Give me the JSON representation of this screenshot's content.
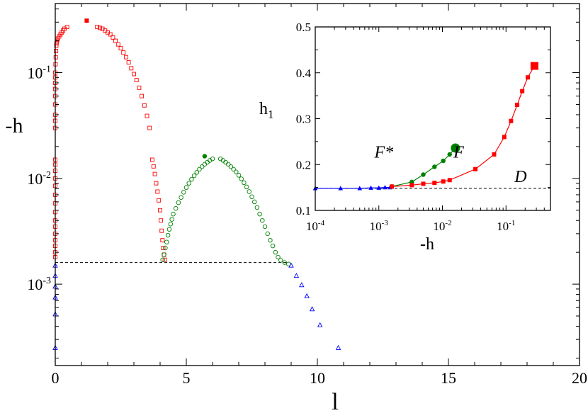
{
  "chart_data": [
    {
      "type": "scatter",
      "xlabel": "l",
      "ylabel": "-h",
      "xlim": [
        0,
        20
      ],
      "ylim": [
        0.00017,
        0.45
      ],
      "yscale": "log",
      "x_ticks": [
        0,
        5,
        10,
        15,
        20
      ],
      "x_tick_labels": [
        "0",
        "5",
        "10",
        "15",
        "20"
      ],
      "y_ticks": [
        0.001,
        0.01,
        0.1
      ],
      "y_tick_labels": [
        {
          "base": "10",
          "exp": "-3"
        },
        {
          "base": "10",
          "exp": "-2"
        },
        {
          "base": "10",
          "exp": "-1"
        }
      ],
      "reference_line": {
        "y": 0.0016,
        "x": [
          0,
          8.9
        ],
        "style": "dashed"
      },
      "series": [
        {
          "marker": "open-square",
          "color": "#ff0000",
          "points": [
            [
              0,
              0.03
            ],
            [
              0,
              0.035
            ],
            [
              0,
              0.04
            ],
            [
              0,
              0.05
            ],
            [
              0,
              0.06
            ],
            [
              0,
              0.07
            ],
            [
              0,
              0.08
            ],
            [
              0,
              0.09
            ],
            [
              0,
              0.1
            ],
            [
              0.01,
              0.12
            ],
            [
              0.02,
              0.14
            ],
            [
              0.03,
              0.16
            ],
            [
              0.04,
              0.18
            ],
            [
              0.05,
              0.19
            ],
            [
              0.07,
              0.2
            ],
            [
              0.1,
              0.21
            ],
            [
              0.15,
              0.22
            ],
            [
              0.2,
              0.23
            ],
            [
              0.25,
              0.24
            ],
            [
              0.3,
              0.25
            ],
            [
              0.35,
              0.26
            ],
            [
              0.45,
              0.27
            ],
            [
              1.6,
              0.27
            ],
            [
              1.7,
              0.265
            ],
            [
              1.8,
              0.26
            ],
            [
              1.9,
              0.25
            ],
            [
              2.0,
              0.24
            ],
            [
              2.1,
              0.23
            ],
            [
              2.2,
              0.215
            ],
            [
              2.3,
              0.2
            ],
            [
              2.4,
              0.185
            ],
            [
              2.5,
              0.17
            ],
            [
              2.6,
              0.155
            ],
            [
              2.7,
              0.14
            ],
            [
              2.8,
              0.125
            ],
            [
              2.9,
              0.11
            ],
            [
              3.0,
              0.097
            ],
            [
              3.1,
              0.085
            ],
            [
              3.2,
              0.072
            ],
            [
              3.3,
              0.06
            ],
            [
              3.4,
              0.049
            ],
            [
              3.5,
              0.039
            ],
            [
              3.6,
              0.03
            ],
            [
              0,
              0.0018
            ],
            [
              0,
              0.002
            ],
            [
              0,
              0.0023
            ],
            [
              0,
              0.0026
            ],
            [
              0,
              0.003
            ],
            [
              0,
              0.0035
            ],
            [
              0,
              0.004
            ],
            [
              0,
              0.0048
            ],
            [
              0,
              0.0058
            ],
            [
              0,
              0.007
            ],
            [
              0,
              0.0085
            ],
            [
              0,
              0.01
            ],
            [
              0,
              0.0118
            ],
            [
              0,
              0.0135
            ],
            [
              0,
              0.015
            ],
            [
              3.7,
              0.015
            ],
            [
              3.75,
              0.013
            ],
            [
              3.8,
              0.011
            ],
            [
              3.85,
              0.009
            ],
            [
              3.9,
              0.0075
            ],
            [
              3.95,
              0.0062
            ],
            [
              4.0,
              0.005
            ],
            [
              4.03,
              0.004
            ],
            [
              4.06,
              0.0032
            ],
            [
              4.09,
              0.0026
            ],
            [
              4.12,
              0.0022
            ],
            [
              4.15,
              0.0019
            ],
            [
              4.18,
              0.0017
            ]
          ]
        },
        {
          "marker": "filled-square",
          "color": "#ff0000",
          "points": [
            [
              1.2,
              0.31
            ]
          ]
        },
        {
          "marker": "open-circle",
          "color": "#008000",
          "points": [
            [
              4.1,
              0.0017
            ],
            [
              4.15,
              0.0019
            ],
            [
              4.2,
              0.0022
            ],
            [
              4.25,
              0.0025
            ],
            [
              4.3,
              0.0029
            ],
            [
              4.35,
              0.0033
            ],
            [
              4.4,
              0.0037
            ],
            [
              4.45,
              0.0041
            ],
            [
              4.5,
              0.0046
            ],
            [
              4.6,
              0.0052
            ],
            [
              4.7,
              0.0059
            ],
            [
              4.8,
              0.0066
            ],
            [
              4.9,
              0.0074
            ],
            [
              5.0,
              0.0082
            ],
            [
              5.1,
              0.009
            ],
            [
              5.2,
              0.0098
            ],
            [
              5.3,
              0.0106
            ],
            [
              5.4,
              0.0114
            ],
            [
              5.5,
              0.0122
            ],
            [
              5.6,
              0.0129
            ],
            [
              5.7,
              0.0136
            ],
            [
              5.8,
              0.0142
            ],
            [
              5.9,
              0.0148
            ],
            [
              6.0,
              0.0153
            ],
            [
              6.3,
              0.0153
            ],
            [
              6.4,
              0.0148
            ],
            [
              6.5,
              0.0142
            ],
            [
              6.6,
              0.0136
            ],
            [
              6.7,
              0.0129
            ],
            [
              6.8,
              0.0122
            ],
            [
              6.9,
              0.0115
            ],
            [
              7.0,
              0.0107
            ],
            [
              7.1,
              0.0099
            ],
            [
              7.2,
              0.0091
            ],
            [
              7.3,
              0.0083
            ],
            [
              7.4,
              0.0075
            ],
            [
              7.5,
              0.0067
            ],
            [
              7.6,
              0.006
            ],
            [
              7.7,
              0.0053
            ],
            [
              7.8,
              0.0046
            ],
            [
              7.9,
              0.004
            ],
            [
              8.0,
              0.0035
            ],
            [
              8.1,
              0.003
            ],
            [
              8.2,
              0.0026
            ],
            [
              8.3,
              0.0023
            ],
            [
              8.4,
              0.002
            ],
            [
              8.5,
              0.0018
            ],
            [
              8.6,
              0.00168
            ],
            [
              8.75,
              0.0016
            ],
            [
              8.9,
              0.00155
            ]
          ]
        },
        {
          "marker": "filled-circle",
          "color": "#008000",
          "points": [
            [
              5.7,
              0.0162
            ]
          ]
        },
        {
          "marker": "open-triangle",
          "color": "#0000ff",
          "points": [
            [
              0,
              0.0015
            ],
            [
              0,
              0.0012
            ],
            [
              0,
              0.00095
            ],
            [
              0,
              0.00075
            ],
            [
              0,
              0.00052
            ],
            [
              0,
              0.00025
            ],
            [
              9.0,
              0.0015
            ],
            [
              9.2,
              0.0012
            ],
            [
              9.4,
              0.00098
            ],
            [
              9.6,
              0.00077
            ],
            [
              9.8,
              0.00058
            ],
            [
              10.1,
              0.00041
            ],
            [
              10.8,
              0.00025
            ]
          ]
        }
      ]
    },
    {
      "type": "line",
      "xlabel": "-h",
      "ylabel": "h",
      "ylabel_sub": "1",
      "xscale": "log",
      "xlim": [
        0.0001,
        0.5
      ],
      "ylim": [
        0.1,
        0.5
      ],
      "x_ticks": [
        0.0001,
        0.001,
        0.01,
        0.1
      ],
      "x_tick_labels": [
        {
          "base": "10",
          "exp": "-4"
        },
        {
          "base": "10",
          "exp": "-3"
        },
        {
          "base": "10",
          "exp": "-2"
        },
        {
          "base": "10",
          "exp": "-1"
        }
      ],
      "y_ticks": [
        0.1,
        0.2,
        0.3,
        0.4,
        0.5
      ],
      "y_tick_labels": [
        "0.1",
        "0.2",
        "0.3",
        "0.4",
        "0.5"
      ],
      "reference_line": {
        "y": 0.148,
        "x": [
          0.0001,
          0.5
        ],
        "style": "dashed"
      },
      "annotations": [
        {
          "text": "F*",
          "x": 0.0012,
          "y": 0.215
        },
        {
          "text": "F",
          "x": 0.018,
          "y": 0.215
        },
        {
          "text": "D",
          "x": 0.17,
          "y": 0.162
        }
      ],
      "series": [
        {
          "color": "#0000ff",
          "marker": "filled-triangle",
          "x": [
            0.0001,
            0.00025,
            0.0005,
            0.00075,
            0.001,
            0.00125,
            0.0015
          ],
          "y": [
            0.148,
            0.148,
            0.148,
            0.149,
            0.149,
            0.15,
            0.15
          ]
        },
        {
          "color": "#008000",
          "marker": "filled-circle",
          "x": [
            0.0016,
            0.0033,
            0.005,
            0.0075,
            0.0103,
            0.013
          ],
          "y": [
            0.152,
            0.162,
            0.178,
            0.195,
            0.208,
            0.222
          ]
        },
        {
          "color": "#008000",
          "marker": "big-filled-circle",
          "x": [
            0.016
          ],
          "y": [
            0.236
          ]
        },
        {
          "color": "#ff0000",
          "marker": "filled-square",
          "x": [
            0.0016,
            0.0033,
            0.005,
            0.0075,
            0.0103,
            0.013,
            0.033,
            0.065,
            0.094,
            0.12,
            0.15,
            0.18,
            0.22
          ],
          "y": [
            0.152,
            0.155,
            0.158,
            0.16,
            0.163,
            0.166,
            0.19,
            0.222,
            0.26,
            0.295,
            0.33,
            0.36,
            0.39
          ]
        },
        {
          "color": "#ff0000",
          "marker": "big-filled-square",
          "x": [
            0.28
          ],
          "y": [
            0.415
          ]
        }
      ]
    }
  ]
}
